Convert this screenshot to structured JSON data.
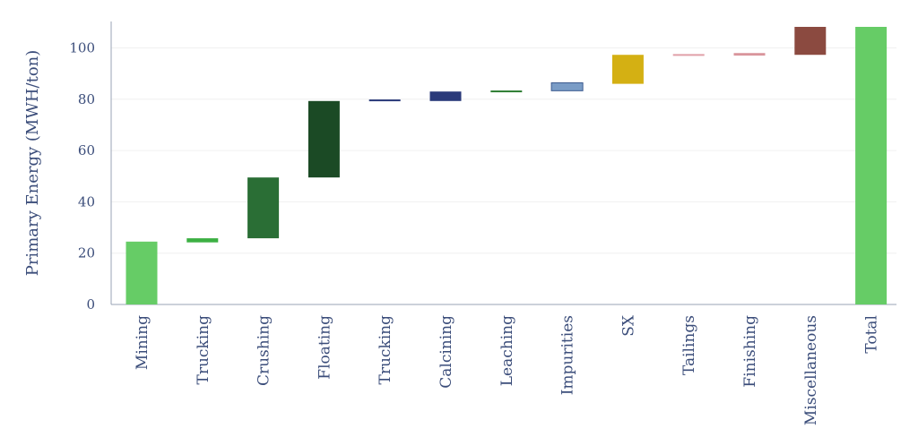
{
  "chart_data": {
    "type": "bar",
    "subtype": "waterfall",
    "ylabel": "Primary Energy (MWH/ton)",
    "xlabel": "",
    "ylim": [
      0,
      110
    ],
    "yticks": [
      0,
      20,
      40,
      60,
      80,
      100
    ],
    "grid": true,
    "legend": "none",
    "bars": [
      {
        "label": "Mining",
        "start": 0,
        "end": 24.5,
        "color": "#66cc66"
      },
      {
        "label": "Trucking",
        "start": 24.2,
        "end": 25.8,
        "color": "#3cb043"
      },
      {
        "label": "Crushing",
        "start": 25.8,
        "end": 49.5,
        "color": "#2a6e35"
      },
      {
        "label": "Floating",
        "start": 49.5,
        "end": 79.3,
        "color": "#1b4a25"
      },
      {
        "label": "Trucking",
        "start": 79.3,
        "end": 79.9,
        "color": "#2a3a7a"
      },
      {
        "label": "Calcining",
        "start": 79.3,
        "end": 83.0,
        "color": "#2a3a7a"
      },
      {
        "label": "Leaching",
        "start": 82.8,
        "end": 83.4,
        "color": "#2e7d32"
      },
      {
        "label": "Impurities",
        "start": 83.3,
        "end": 86.4,
        "color": "#7a9cc6"
      },
      {
        "label": "SX",
        "start": 86.0,
        "end": 97.3,
        "color": "#d4b013"
      },
      {
        "label": "Tailings",
        "start": 97.0,
        "end": 97.6,
        "color": "#e0a0a8"
      },
      {
        "label": "Finishing",
        "start": 97.0,
        "end": 98.0,
        "color": "#d9959c"
      },
      {
        "label": "Miscellaneous",
        "start": 97.3,
        "end": 108.2,
        "color": "#8b4a40"
      },
      {
        "label": "Total",
        "start": 0,
        "end": 108.2,
        "color": "#66cc66"
      }
    ]
  }
}
